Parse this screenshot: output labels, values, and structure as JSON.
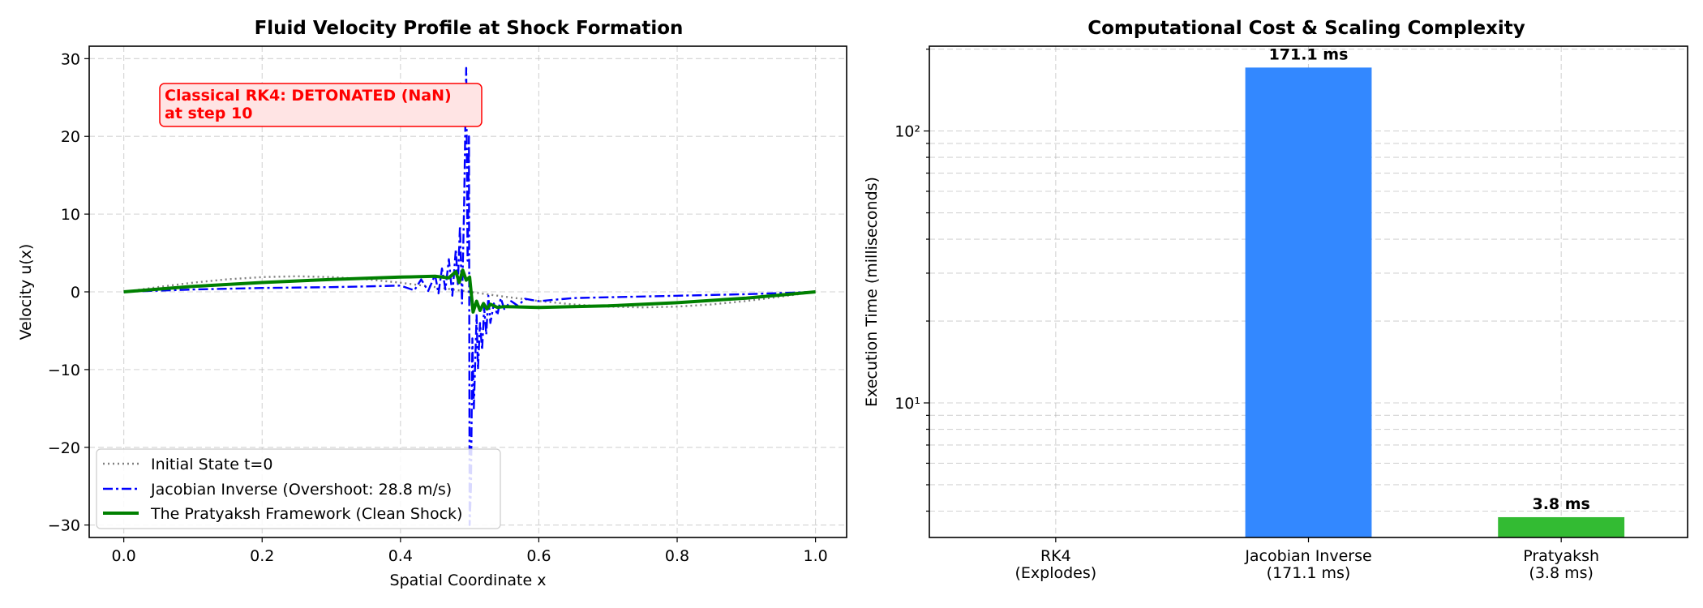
{
  "chart_data": [
    {
      "type": "line",
      "title": "Fluid Velocity Profile at Shock Formation",
      "xlabel": "Spatial Coordinate x",
      "ylabel": "Velocity u(x)",
      "xlim": [
        -0.05,
        1.045
      ],
      "ylim": [
        -31.6,
        31.6
      ],
      "xticks": [
        0.0,
        0.2,
        0.4,
        0.6,
        0.8,
        1.0
      ],
      "xtick_labels": [
        "0.0",
        "0.2",
        "0.4",
        "0.6",
        "0.8",
        "1.0"
      ],
      "yticks": [
        -30,
        -20,
        -10,
        0,
        10,
        20,
        30
      ],
      "ytick_labels": [
        "−30",
        "−20",
        "−10",
        "0",
        "10",
        "20",
        "30"
      ],
      "grid": true,
      "legend_position": "lower-left",
      "annotation": {
        "lines": [
          "Classical RK4: DETONATED (NaN)",
          "at step 10"
        ],
        "color": "#ff0000",
        "background": "#ffe4e4"
      },
      "series": [
        {
          "name": "Initial State t=0",
          "color": "#808080",
          "style": "dotted",
          "x": [
            0.0,
            0.05,
            0.1,
            0.15,
            0.2,
            0.25,
            0.3,
            0.35,
            0.4,
            0.45,
            0.5,
            0.55,
            0.6,
            0.65,
            0.7,
            0.75,
            0.8,
            0.85,
            0.9,
            0.95,
            1.0
          ],
          "y": [
            0.0,
            0.62,
            1.18,
            1.62,
            1.9,
            2.0,
            1.9,
            1.62,
            1.18,
            0.62,
            0.0,
            -0.62,
            -1.18,
            -1.62,
            -1.9,
            -2.0,
            -1.9,
            -1.62,
            -1.18,
            -0.62,
            0.0
          ]
        },
        {
          "name": "Jacobian Inverse (Overshoot: 28.8 m/s)",
          "color": "#0000ff",
          "style": "dashdot",
          "x": [
            0.0,
            0.1,
            0.2,
            0.3,
            0.35,
            0.4,
            0.42,
            0.43,
            0.44,
            0.45,
            0.455,
            0.46,
            0.465,
            0.47,
            0.475,
            0.48,
            0.483,
            0.486,
            0.489,
            0.492,
            0.495,
            0.497,
            0.499,
            0.5,
            0.502,
            0.504,
            0.506,
            0.508,
            0.51,
            0.512,
            0.515,
            0.518,
            0.521,
            0.524,
            0.527,
            0.53,
            0.535,
            0.54,
            0.545,
            0.55,
            0.56,
            0.57,
            0.58,
            0.6,
            0.65,
            0.7,
            0.8,
            0.9,
            1.0
          ],
          "y": [
            0.0,
            0.3,
            0.5,
            0.6,
            0.7,
            0.8,
            0.2,
            1.6,
            0.1,
            2.2,
            -0.2,
            3.0,
            0.3,
            4.2,
            -0.5,
            5.5,
            1.0,
            8.5,
            -1.5,
            11.0,
            28.8,
            4.0,
            20.0,
            -30.0,
            -25.0,
            -6.0,
            -15.0,
            -9.0,
            -3.0,
            -10.0,
            -4.0,
            -7.5,
            -2.0,
            -5.5,
            -0.5,
            -4.0,
            -1.5,
            -3.0,
            -0.8,
            -2.2,
            -1.2,
            -1.8,
            -0.9,
            -1.2,
            -0.8,
            -0.7,
            -0.5,
            -0.3,
            0.0
          ]
        },
        {
          "name": "The Pratyaksh Framework (Clean Shock)",
          "color": "#008000",
          "style": "solid",
          "x": [
            0.0,
            0.1,
            0.2,
            0.3,
            0.4,
            0.45,
            0.47,
            0.48,
            0.485,
            0.49,
            0.495,
            0.5,
            0.505,
            0.51,
            0.515,
            0.52,
            0.525,
            0.53,
            0.54,
            0.55,
            0.6,
            0.7,
            0.8,
            0.9,
            1.0
          ],
          "y": [
            0.0,
            0.7,
            1.2,
            1.6,
            1.9,
            2.0,
            1.8,
            2.6,
            1.2,
            2.8,
            1.5,
            1.9,
            -2.6,
            -1.2,
            -2.4,
            -1.5,
            -2.2,
            -1.6,
            -2.0,
            -1.9,
            -2.0,
            -1.8,
            -1.4,
            -0.8,
            0.0
          ]
        }
      ]
    },
    {
      "type": "bar",
      "title": "Computational Cost & Scaling Complexity",
      "xlabel": "",
      "ylabel": "Execution Time (milliseconds)",
      "yscale": "log",
      "ylim": [
        3.2,
        205
      ],
      "yticks": [
        10,
        100
      ],
      "ytick_labels": [
        "10¹",
        "10²"
      ],
      "grid": true,
      "categories": [
        "RK4\n(Explodes)",
        "Jacobian Inverse\n(171.1 ms)",
        "Pratyaksh\n(3.8 ms)"
      ],
      "values": [
        null,
        171.1,
        3.8
      ],
      "value_labels": [
        "",
        "171.1 ms",
        "3.8 ms"
      ],
      "colors": [
        "#cccccc",
        "#3388ff",
        "#33bb33"
      ]
    }
  ]
}
